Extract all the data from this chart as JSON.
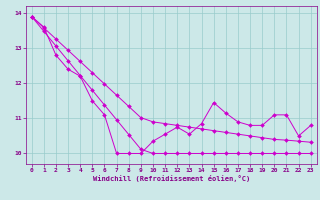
{
  "x": [
    0,
    1,
    2,
    3,
    4,
    5,
    6,
    7,
    8,
    9,
    10,
    11,
    12,
    13,
    14,
    15,
    16,
    17,
    18,
    19,
    20,
    21,
    22,
    23
  ],
  "zigzag": [
    13.9,
    13.6,
    12.8,
    12.4,
    12.2,
    11.5,
    11.1,
    10.0,
    10.0,
    10.0,
    10.35,
    10.55,
    10.75,
    10.55,
    10.85,
    11.45,
    11.15,
    10.9,
    10.8,
    10.8,
    11.1,
    11.1,
    10.5,
    10.8
  ],
  "trend_upper": [
    13.9,
    13.58,
    13.26,
    12.94,
    12.62,
    12.3,
    11.98,
    11.66,
    11.34,
    11.02,
    10.9,
    10.85,
    10.8,
    10.75,
    10.7,
    10.65,
    10.6,
    10.55,
    10.5,
    10.45,
    10.4,
    10.38,
    10.35,
    10.32
  ],
  "trend_lower": [
    13.9,
    13.48,
    13.06,
    12.64,
    12.22,
    11.8,
    11.38,
    10.96,
    10.54,
    10.12,
    10.0,
    10.0,
    10.0,
    10.0,
    10.0,
    10.0,
    10.0,
    10.0,
    10.0,
    10.0,
    10.0,
    10.0,
    10.0,
    10.0
  ],
  "background": "#cce8e8",
  "line_color": "#cc00cc",
  "grid_color": "#99cccc",
  "xlabel": "Windchill (Refroidissement éolien,°C)",
  "ylim": [
    9.7,
    14.2
  ],
  "xlim": [
    -0.5,
    23.5
  ],
  "yticks": [
    10,
    11,
    12,
    13,
    14
  ],
  "xticks": [
    0,
    1,
    2,
    3,
    4,
    5,
    6,
    7,
    8,
    9,
    10,
    11,
    12,
    13,
    14,
    15,
    16,
    17,
    18,
    19,
    20,
    21,
    22,
    23
  ],
  "tick_labelsize": 4.5,
  "xlabel_fontsize": 5.0,
  "lw": 0.7,
  "ms": 2.0
}
